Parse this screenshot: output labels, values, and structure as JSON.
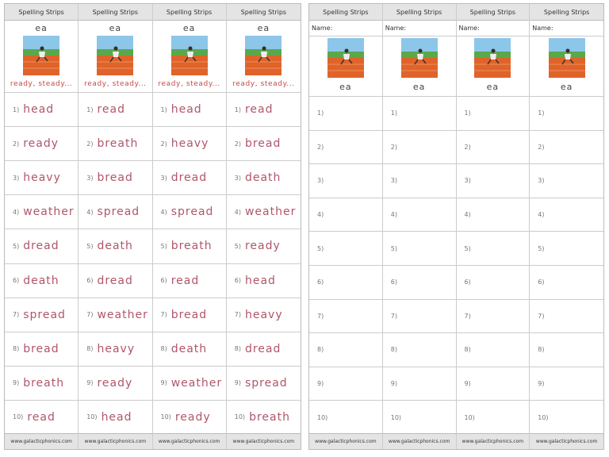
{
  "left_page": {
    "numbers": [
      "1)",
      "2)",
      "3)",
      "4)",
      "5)",
      "6)",
      "7)",
      "8)",
      "9)",
      "10)"
    ],
    "columns": [
      {
        "header": "Spelling Strips",
        "sound": "ea",
        "caption": "ready, steady...",
        "words": [
          "head",
          "ready",
          "heavy",
          "weather",
          "dread",
          "death",
          "spread",
          "bread",
          "breath",
          "read"
        ],
        "footer": "www.galacticphonics.com"
      },
      {
        "header": "Spelling Strips",
        "sound": "ea",
        "caption": "ready, steady...",
        "words": [
          "read",
          "breath",
          "bread",
          "spread",
          "death",
          "dread",
          "weather",
          "heavy",
          "ready",
          "head"
        ],
        "footer": "www.galacticphonics.com"
      },
      {
        "header": "Spelling Strips",
        "sound": "ea",
        "caption": "ready, steady...",
        "words": [
          "head",
          "heavy",
          "dread",
          "spread",
          "breath",
          "read",
          "bread",
          "death",
          "weather",
          "ready"
        ],
        "footer": "www.galacticphonics.com"
      },
      {
        "header": "Spelling Strips",
        "sound": "ea",
        "caption": "ready, steady...",
        "words": [
          "read",
          "bread",
          "death",
          "weather",
          "ready",
          "head",
          "heavy",
          "dread",
          "spread",
          "breath"
        ],
        "footer": "www.galacticphonics.com"
      }
    ]
  },
  "right_page": {
    "numbers": [
      "1)",
      "2)",
      "3)",
      "4)",
      "5)",
      "6)",
      "7)",
      "8)",
      "9)",
      "10)"
    ],
    "columns": [
      {
        "header": "Spelling Strips",
        "name_label": "Name:",
        "sound": "ea",
        "footer": "www.galacticphonics.com"
      },
      {
        "header": "Spelling Strips",
        "name_label": "Name:",
        "sound": "ea",
        "footer": "www.galacticphonics.com"
      },
      {
        "header": "Spelling Strips",
        "name_label": "Name:",
        "sound": "ea",
        "footer": "www.galacticphonics.com"
      },
      {
        "header": "Spelling Strips",
        "name_label": "Name:",
        "sound": "ea",
        "footer": "www.galacticphonics.com"
      }
    ]
  }
}
